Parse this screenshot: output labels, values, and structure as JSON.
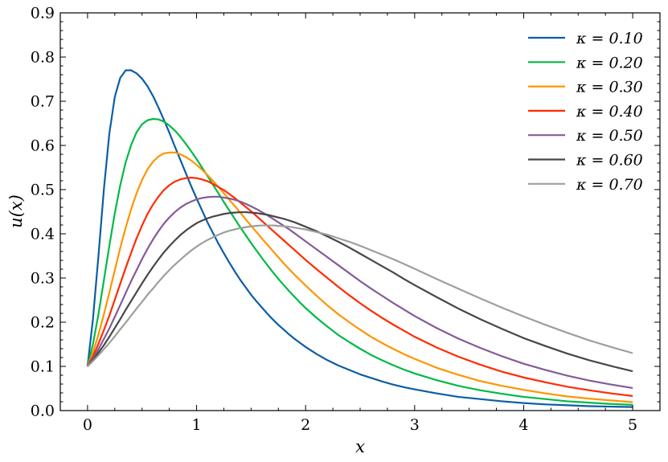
{
  "chart_data": {
    "type": "line",
    "xlabel": "x",
    "ylabel": "u(x)",
    "xlim": [
      -0.25,
      5.25
    ],
    "ylim": [
      0.0,
      0.9
    ],
    "xticks": [
      0,
      1,
      2,
      3,
      4,
      5
    ],
    "xtick_labels": [
      "0",
      "1",
      "2",
      "3",
      "4",
      "5"
    ],
    "yticks": [
      0.0,
      0.1,
      0.2,
      0.3,
      0.4,
      0.5,
      0.6,
      0.7,
      0.8,
      0.9
    ],
    "ytick_labels": [
      "0.0",
      "0.1",
      "0.2",
      "0.3",
      "0.4",
      "0.5",
      "0.6",
      "0.7",
      "0.8",
      "0.9"
    ],
    "grid": false,
    "legend_position": "top-right",
    "x": [
      0,
      0.05,
      0.1,
      0.15,
      0.2,
      0.25,
      0.3,
      0.35,
      0.4,
      0.45,
      0.5,
      0.55,
      0.6,
      0.65,
      0.7,
      0.75,
      0.8,
      0.85,
      0.9,
      0.95,
      1.0,
      1.05,
      1.1,
      1.15,
      1.2,
      1.25,
      1.3,
      1.35,
      1.4,
      1.45,
      1.5,
      1.55,
      1.6,
      1.65,
      1.7,
      1.75,
      1.8,
      1.85,
      1.9,
      1.95,
      2.0,
      2.1,
      2.2,
      2.3,
      2.4,
      2.5,
      2.6,
      2.7,
      2.8,
      2.9,
      3.0,
      3.2,
      3.4,
      3.6,
      3.8,
      4.0,
      4.2,
      4.4,
      4.6,
      4.8,
      5.0
    ],
    "series": [
      {
        "name": "κ = 0.10",
        "color": "#0c5da5",
        "values": [
          0.1,
          0.208,
          0.35,
          0.501,
          0.627,
          0.71,
          0.753,
          0.77,
          0.77,
          0.763,
          0.751,
          0.734,
          0.712,
          0.686,
          0.658,
          0.629,
          0.598,
          0.568,
          0.538,
          0.508,
          0.48,
          0.453,
          0.426,
          0.402,
          0.378,
          0.356,
          0.335,
          0.315,
          0.296,
          0.279,
          0.262,
          0.247,
          0.233,
          0.219,
          0.206,
          0.194,
          0.183,
          0.172,
          0.162,
          0.153,
          0.144,
          0.128,
          0.114,
          0.102,
          0.092,
          0.082,
          0.074,
          0.066,
          0.059,
          0.053,
          0.048,
          0.039,
          0.031,
          0.026,
          0.021,
          0.017,
          0.014,
          0.012,
          0.01,
          0.009,
          0.008
        ]
      },
      {
        "name": "κ = 0.20",
        "color": "#00b945",
        "values": [
          0.1,
          0.151,
          0.218,
          0.295,
          0.373,
          0.447,
          0.51,
          0.562,
          0.601,
          0.63,
          0.648,
          0.657,
          0.66,
          0.659,
          0.654,
          0.645,
          0.634,
          0.62,
          0.604,
          0.587,
          0.569,
          0.55,
          0.531,
          0.511,
          0.492,
          0.472,
          0.453,
          0.434,
          0.415,
          0.397,
          0.379,
          0.362,
          0.345,
          0.329,
          0.313,
          0.298,
          0.284,
          0.27,
          0.257,
          0.244,
          0.232,
          0.21,
          0.19,
          0.171,
          0.155,
          0.14,
          0.126,
          0.114,
          0.103,
          0.093,
          0.084,
          0.069,
          0.056,
          0.046,
          0.038,
          0.031,
          0.026,
          0.021,
          0.018,
          0.015,
          0.013
        ]
      },
      {
        "name": "κ = 0.30",
        "color": "#ff9500",
        "values": [
          0.1,
          0.132,
          0.172,
          0.218,
          0.267,
          0.318,
          0.368,
          0.414,
          0.456,
          0.492,
          0.522,
          0.546,
          0.563,
          0.575,
          0.582,
          0.584,
          0.584,
          0.58,
          0.574,
          0.566,
          0.556,
          0.545,
          0.533,
          0.52,
          0.506,
          0.492,
          0.477,
          0.463,
          0.448,
          0.433,
          0.418,
          0.404,
          0.389,
          0.375,
          0.361,
          0.347,
          0.333,
          0.32,
          0.307,
          0.295,
          0.283,
          0.26,
          0.238,
          0.218,
          0.2,
          0.183,
          0.167,
          0.153,
          0.14,
          0.128,
          0.117,
          0.097,
          0.081,
          0.067,
          0.056,
          0.047,
          0.039,
          0.032,
          0.027,
          0.023,
          0.019
        ]
      },
      {
        "name": "κ = 0.40",
        "color": "#ff2c00",
        "values": [
          0.1,
          0.123,
          0.151,
          0.182,
          0.215,
          0.251,
          0.287,
          0.323,
          0.357,
          0.39,
          0.419,
          0.445,
          0.466,
          0.484,
          0.499,
          0.51,
          0.518,
          0.523,
          0.526,
          0.527,
          0.526,
          0.523,
          0.519,
          0.513,
          0.506,
          0.499,
          0.49,
          0.481,
          0.471,
          0.461,
          0.451,
          0.44,
          0.429,
          0.418,
          0.407,
          0.396,
          0.385,
          0.374,
          0.363,
          0.352,
          0.341,
          0.32,
          0.3,
          0.28,
          0.261,
          0.243,
          0.226,
          0.21,
          0.195,
          0.181,
          0.167,
          0.143,
          0.122,
          0.104,
          0.088,
          0.075,
          0.064,
          0.054,
          0.046,
          0.039,
          0.033
        ]
      },
      {
        "name": "κ = 0.50",
        "color": "#845b97",
        "values": [
          0.1,
          0.118,
          0.139,
          0.162,
          0.186,
          0.212,
          0.239,
          0.266,
          0.293,
          0.318,
          0.343,
          0.366,
          0.387,
          0.406,
          0.423,
          0.437,
          0.449,
          0.459,
          0.467,
          0.473,
          0.478,
          0.481,
          0.483,
          0.484,
          0.484,
          0.482,
          0.48,
          0.477,
          0.473,
          0.468,
          0.462,
          0.456,
          0.449,
          0.442,
          0.434,
          0.426,
          0.418,
          0.41,
          0.401,
          0.392,
          0.383,
          0.365,
          0.347,
          0.329,
          0.311,
          0.293,
          0.276,
          0.26,
          0.244,
          0.229,
          0.214,
          0.187,
          0.163,
          0.142,
          0.123,
          0.106,
          0.092,
          0.079,
          0.068,
          0.059,
          0.051
        ]
      },
      {
        "name": "κ = 0.60",
        "color": "#474747",
        "values": [
          0.1,
          0.114,
          0.131,
          0.148,
          0.167,
          0.187,
          0.207,
          0.228,
          0.248,
          0.268,
          0.288,
          0.307,
          0.325,
          0.342,
          0.358,
          0.372,
          0.385,
          0.397,
          0.407,
          0.416,
          0.424,
          0.43,
          0.435,
          0.439,
          0.442,
          0.445,
          0.447,
          0.448,
          0.449,
          0.449,
          0.448,
          0.447,
          0.445,
          0.443,
          0.44,
          0.437,
          0.434,
          0.43,
          0.426,
          0.421,
          0.416,
          0.406,
          0.394,
          0.382,
          0.369,
          0.355,
          0.341,
          0.327,
          0.313,
          0.298,
          0.284,
          0.257,
          0.231,
          0.207,
          0.185,
          0.164,
          0.146,
          0.129,
          0.114,
          0.101,
          0.089
        ]
      },
      {
        "name": "κ = 0.70",
        "color": "#9e9e9e",
        "values": [
          0.1,
          0.112,
          0.125,
          0.139,
          0.153,
          0.168,
          0.184,
          0.199,
          0.215,
          0.231,
          0.246,
          0.262,
          0.276,
          0.291,
          0.305,
          0.318,
          0.33,
          0.341,
          0.352,
          0.362,
          0.371,
          0.379,
          0.386,
          0.392,
          0.398,
          0.403,
          0.407,
          0.41,
          0.413,
          0.415,
          0.417,
          0.418,
          0.419,
          0.419,
          0.419,
          0.418,
          0.417,
          0.416,
          0.414,
          0.412,
          0.41,
          0.404,
          0.398,
          0.39,
          0.382,
          0.373,
          0.363,
          0.353,
          0.343,
          0.332,
          0.321,
          0.298,
          0.276,
          0.254,
          0.233,
          0.213,
          0.194,
          0.176,
          0.159,
          0.144,
          0.13
        ]
      }
    ]
  }
}
